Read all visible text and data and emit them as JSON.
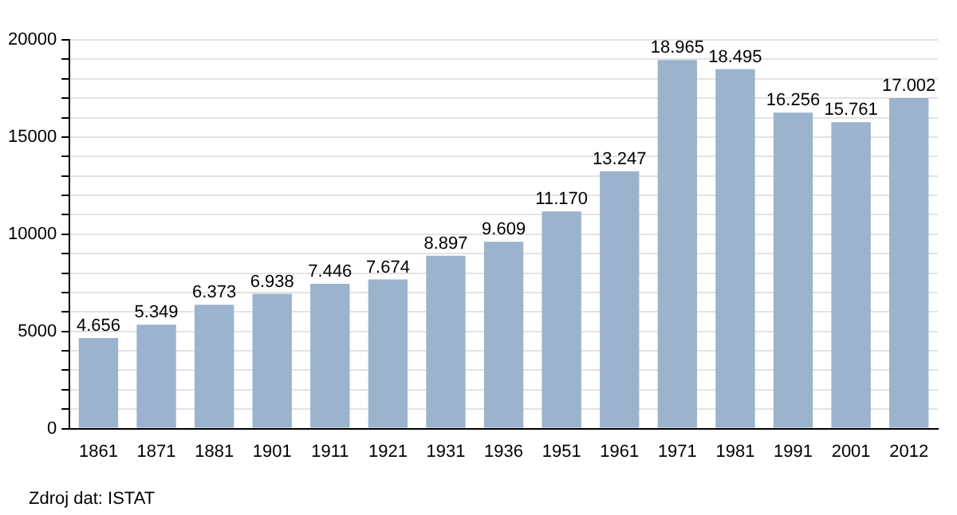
{
  "chart_data": {
    "type": "bar",
    "categories": [
      "1861",
      "1871",
      "1881",
      "1901",
      "1911",
      "1921",
      "1931",
      "1936",
      "1951",
      "1961",
      "1971",
      "1981",
      "1991",
      "2001",
      "2012"
    ],
    "values": [
      4656,
      5349,
      6373,
      6938,
      7446,
      7674,
      8897,
      9609,
      11170,
      13247,
      18965,
      18495,
      16256,
      15761,
      17002
    ],
    "value_labels": [
      "4.656",
      "5.349",
      "6.373",
      "6.938",
      "7.446",
      "7.674",
      "8.897",
      "9.609",
      "11.170",
      "13.247",
      "18.965",
      "18.495",
      "16.256",
      "15.761",
      "17.002"
    ],
    "color": "#9bb3cd",
    "ylim": [
      0,
      20000
    ],
    "yticks": [
      0,
      {
        "value": 1000,
        "label": null
      },
      {
        "value": 2000,
        "label": null
      },
      {
        "value": 3000,
        "label": null
      },
      {
        "value": 4000,
        "label": null
      },
      5000,
      {
        "value": 6000,
        "label": null
      },
      {
        "value": 7000,
        "label": null
      },
      {
        "value": 8000,
        "label": null
      },
      {
        "value": 9000,
        "label": null
      },
      10000,
      {
        "value": 11000,
        "label": null
      },
      {
        "value": 12000,
        "label": null
      },
      {
        "value": 13000,
        "label": null
      },
      {
        "value": 14000,
        "label": null
      },
      15000,
      {
        "value": 16000,
        "label": null
      },
      {
        "value": 17000,
        "label": null
      },
      {
        "value": 18000,
        "label": null
      },
      {
        "value": 19000,
        "label": null
      },
      20000
    ],
    "grid": "y",
    "annotations": [
      "Zdroj dat: ISTAT"
    ]
  }
}
